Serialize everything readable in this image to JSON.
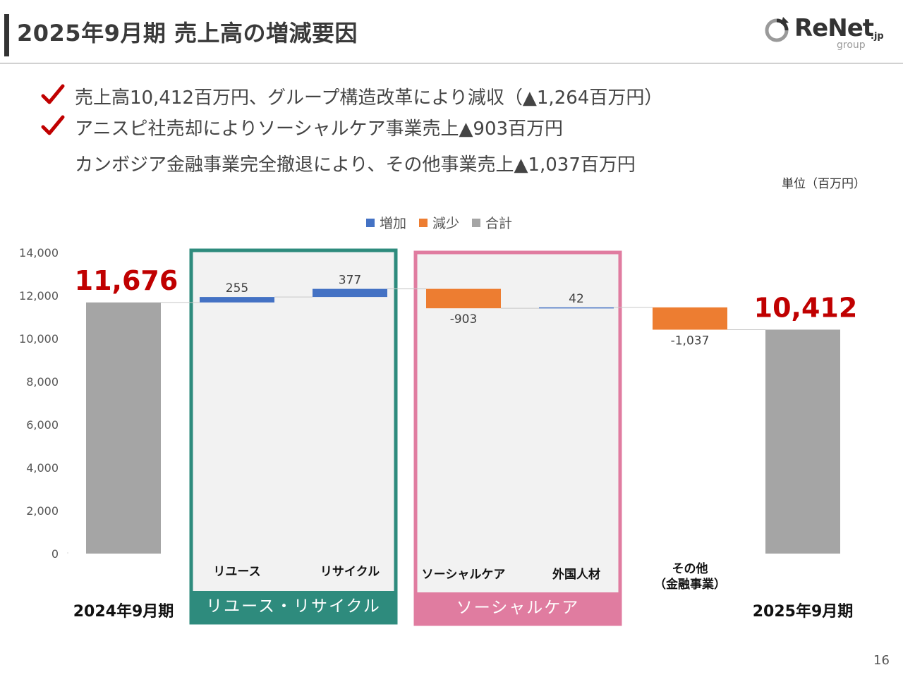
{
  "header": {
    "title": "2025年9月期 売上高の増減要因",
    "logo_text": "ReNet",
    "logo_suffix": ".jp",
    "logo_sub": "group"
  },
  "bullets": [
    {
      "text": "売上高10,412百万円、グループ構造改革により減収（▲1,264百万円）",
      "checked": true
    },
    {
      "text": "アニスピ社売却によりソーシャルケア事業売上▲903百万円",
      "checked": true
    },
    {
      "text": "カンボジア金融事業完全撤退により、その他事業売上▲1,037百万円",
      "checked": false
    }
  ],
  "unit_label": "単位（百万円）",
  "legend": [
    {
      "label": "増加",
      "color": "#4472C4"
    },
    {
      "label": "減少",
      "color": "#ED7D31"
    },
    {
      "label": "合計",
      "color": "#A5A5A5"
    }
  ],
  "groups": [
    {
      "label": "リユース・リサイクル",
      "color": "#2E8B7D"
    },
    {
      "label": "ソーシャルケア",
      "color": "#E07CA0"
    }
  ],
  "page_number": "16",
  "chart_data": {
    "type": "bar",
    "subtype": "waterfall",
    "ylim": [
      0,
      14000
    ],
    "yticks": [
      "0",
      "2,000",
      "4,000",
      "6,000",
      "8,000",
      "10,000",
      "12,000",
      "14,000"
    ],
    "categories": [
      "2024年9月期",
      "リユース",
      "リサイクル",
      "ソーシャルケア",
      "外国人材",
      "その他\n（金融事業）",
      "2025年9月期"
    ],
    "values": [
      11676,
      255,
      377,
      -903,
      42,
      -1037,
      10412
    ],
    "kinds": [
      "total",
      "increase",
      "increase",
      "decrease",
      "increase",
      "decrease",
      "total"
    ],
    "data_labels": [
      "11,676",
      "255",
      "377",
      "-903",
      "42",
      "-1,037",
      "10,412"
    ],
    "colors": {
      "increase": "#4472C4",
      "decrease": "#ED7D31",
      "total": "#A5A5A5"
    },
    "colors_total_label": "#C00000"
  }
}
